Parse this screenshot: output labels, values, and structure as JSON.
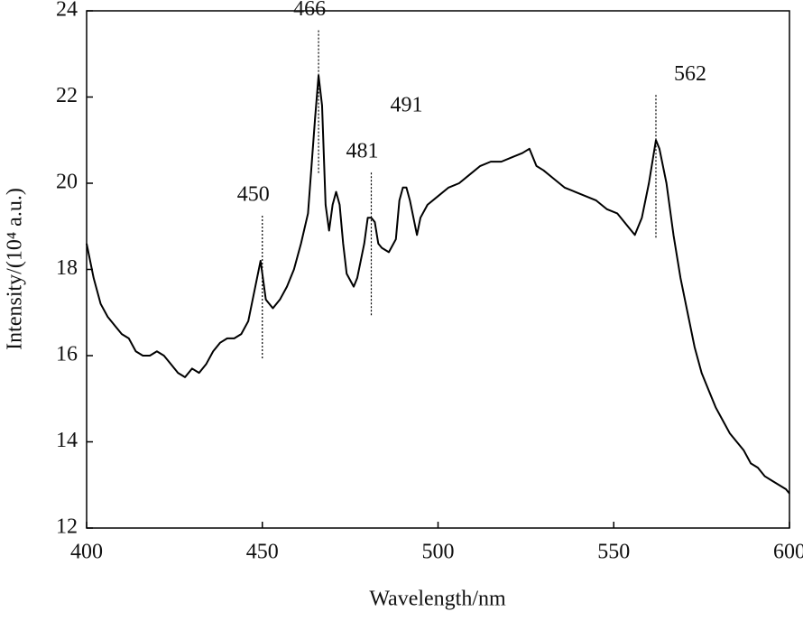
{
  "chart_data": {
    "type": "line",
    "x_label": "Wavelength/nm",
    "y_label": "Intensity/(10⁴ a.u.)",
    "xlim": [
      400,
      600
    ],
    "xticks": [
      400,
      450,
      500,
      550,
      600
    ],
    "ylim": [
      12,
      24
    ],
    "yticks": [
      12,
      14,
      16,
      18,
      20,
      22,
      24
    ],
    "series": [
      {
        "color": "#000000",
        "x": [
          400,
          402,
          404,
          406,
          408,
          410,
          412,
          414,
          416,
          418,
          420,
          422,
          424,
          426,
          428,
          430,
          432,
          434,
          436,
          438,
          440,
          442,
          444,
          446,
          448,
          449.5,
          451,
          453,
          455,
          457,
          459,
          461,
          463,
          465,
          466,
          467,
          468,
          469,
          470,
          471,
          472,
          473,
          474,
          476,
          477,
          479,
          480,
          481,
          482,
          483,
          484,
          486,
          488,
          489,
          490,
          491,
          492,
          493,
          494,
          495,
          497,
          500,
          503,
          506,
          509,
          512,
          515,
          518,
          521,
          524,
          526,
          528,
          530,
          533,
          536,
          539,
          542,
          545,
          548,
          551,
          554,
          556,
          558,
          560,
          562,
          563,
          565,
          567,
          569,
          571,
          573,
          575,
          577,
          579,
          581,
          583,
          585,
          587,
          589,
          591,
          593,
          595,
          597,
          599,
          600
        ],
        "values": [
          18.6,
          17.8,
          17.2,
          16.9,
          16.7,
          16.5,
          16.4,
          16.1,
          16.0,
          16.0,
          16.1,
          16.0,
          15.8,
          15.6,
          15.5,
          15.7,
          15.6,
          15.8,
          16.1,
          16.3,
          16.4,
          16.4,
          16.5,
          16.8,
          17.6,
          18.2,
          17.3,
          17.1,
          17.3,
          17.6,
          18.0,
          18.6,
          19.3,
          21.5,
          22.5,
          21.8,
          19.5,
          18.9,
          19.5,
          19.8,
          19.5,
          18.6,
          17.9,
          17.6,
          17.8,
          18.6,
          19.2,
          19.2,
          19.1,
          18.6,
          18.5,
          18.4,
          18.7,
          19.6,
          19.9,
          19.9,
          19.6,
          19.2,
          18.8,
          19.2,
          19.5,
          19.7,
          19.9,
          20.0,
          20.2,
          20.4,
          20.5,
          20.5,
          20.6,
          20.7,
          20.8,
          20.4,
          20.3,
          20.1,
          19.9,
          19.8,
          19.7,
          19.6,
          19.4,
          19.3,
          19.0,
          18.8,
          19.2,
          20.0,
          21.0,
          20.8,
          20.0,
          18.8,
          17.8,
          17.0,
          16.2,
          15.6,
          15.2,
          14.8,
          14.5,
          14.2,
          14.0,
          13.8,
          13.5,
          13.4,
          13.2,
          13.1,
          13.0,
          12.9,
          12.8
        ]
      }
    ],
    "annotations": [
      {
        "label": "450",
        "x": 450,
        "dotted": true
      },
      {
        "label": "466",
        "x": 466,
        "dotted": true
      },
      {
        "label": "481",
        "x": 481,
        "dotted": true
      },
      {
        "label": "491",
        "x": 491,
        "dotted": false
      },
      {
        "label": "562",
        "x": 562,
        "dotted": true
      }
    ]
  }
}
